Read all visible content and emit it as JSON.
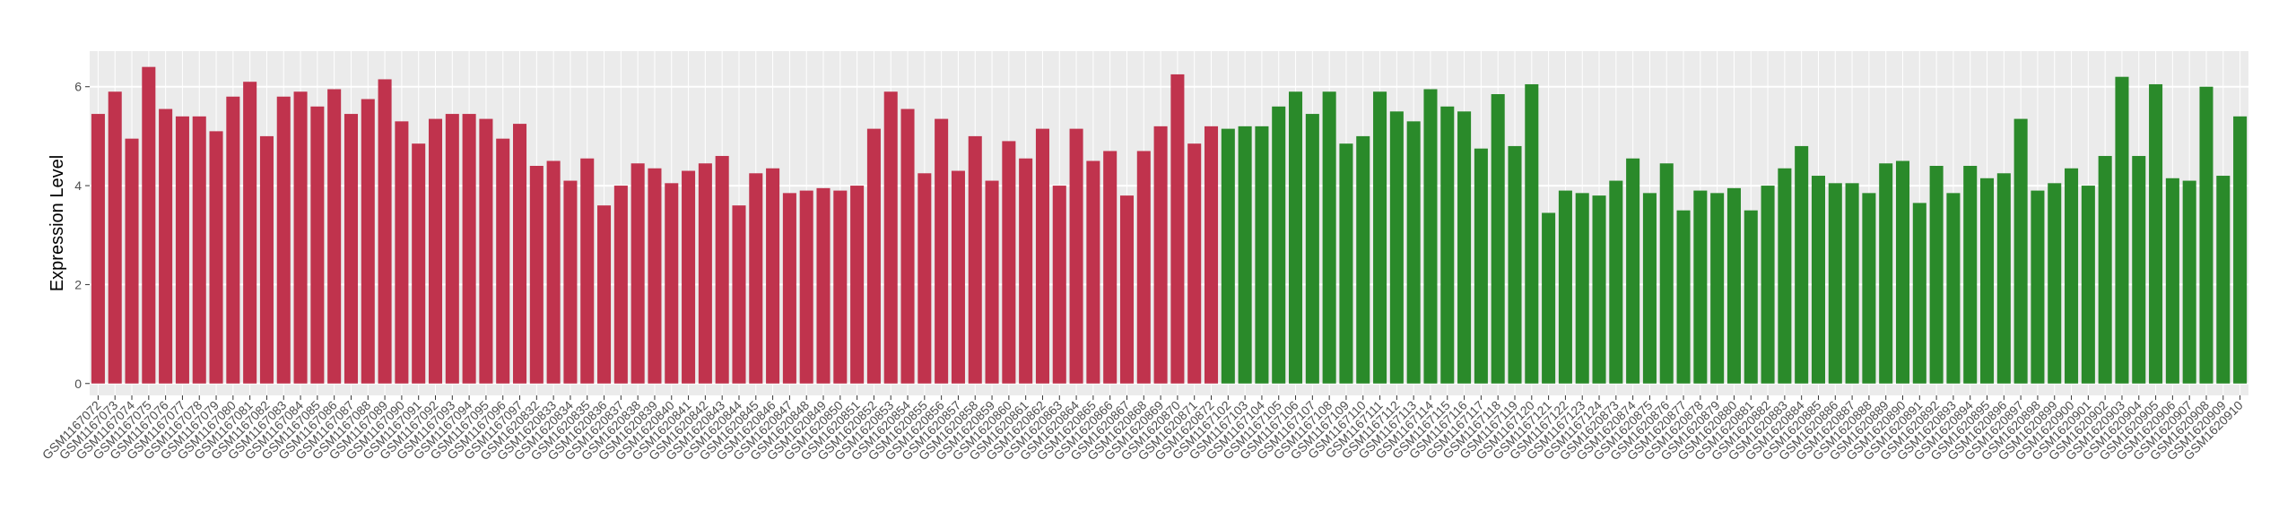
{
  "chart_data": {
    "type": "bar",
    "y_label": "Expression Level",
    "ylim": [
      -0.24,
      6.72
    ],
    "yticks": [
      0,
      2,
      4,
      6
    ],
    "grid": true,
    "groups": [
      {
        "color": "#c0334d",
        "categories": [
          "GSM1167072",
          "GSM1167073",
          "GSM1167074",
          "GSM1167075",
          "GSM1167076",
          "GSM1167077",
          "GSM1167078",
          "GSM1167079",
          "GSM1167080",
          "GSM1167081",
          "GSM1167082",
          "GSM1167083",
          "GSM1167084",
          "GSM1167085",
          "GSM1167086",
          "GSM1167087",
          "GSM1167088",
          "GSM1167089",
          "GSM1167090",
          "GSM1167091",
          "GSM1167092",
          "GSM1167093",
          "GSM1167094",
          "GSM1167095",
          "GSM1167096",
          "GSM1167097",
          "GSM1620832",
          "GSM1620833",
          "GSM1620834",
          "GSM1620835",
          "GSM1620836",
          "GSM1620837",
          "GSM1620838",
          "GSM1620839",
          "GSM1620840",
          "GSM1620841",
          "GSM1620842",
          "GSM1620843",
          "GSM1620844",
          "GSM1620845",
          "GSM1620846",
          "GSM1620847",
          "GSM1620848",
          "GSM1620849",
          "GSM1620850",
          "GSM1620851",
          "GSM1620852",
          "GSM1620853",
          "GSM1620854",
          "GSM1620855",
          "GSM1620856",
          "GSM1620857",
          "GSM1620858",
          "GSM1620859",
          "GSM1620860",
          "GSM1620861",
          "GSM1620862",
          "GSM1620863",
          "GSM1620864",
          "GSM1620865",
          "GSM1620866",
          "GSM1620867",
          "GSM1620868",
          "GSM1620869",
          "GSM1620870",
          "GSM1620871",
          "GSM1620872"
        ],
        "values": [
          5.45,
          5.9,
          4.95,
          6.4,
          5.55,
          5.4,
          5.4,
          5.1,
          5.8,
          6.1,
          5.0,
          5.8,
          5.9,
          5.6,
          5.95,
          5.45,
          5.75,
          6.15,
          5.3,
          4.85,
          5.35,
          5.45,
          5.45,
          5.35,
          4.95,
          5.25,
          4.4,
          4.5,
          4.1,
          4.55,
          3.6,
          4.0,
          4.45,
          4.35,
          4.05,
          4.3,
          4.45,
          4.6,
          3.6,
          4.25,
          4.35,
          3.85,
          3.9,
          3.95,
          3.9,
          4.0,
          5.15,
          5.9,
          5.55,
          4.25,
          5.35,
          4.3,
          5.0,
          4.1,
          4.9,
          4.55,
          5.15,
          4.0,
          5.15,
          4.5,
          4.7,
          3.8,
          4.7,
          5.2,
          6.25,
          4.85,
          5.2
        ]
      },
      {
        "color": "#2a8a2a",
        "categories": [
          "GSM1167102",
          "GSM1167103",
          "GSM1167104",
          "GSM1167105",
          "GSM1167106",
          "GSM1167107",
          "GSM1167108",
          "GSM1167109",
          "GSM1167110",
          "GSM1167111",
          "GSM1167112",
          "GSM1167113",
          "GSM1167114",
          "GSM1167115",
          "GSM1167116",
          "GSM1167117",
          "GSM1167118",
          "GSM1167119",
          "GSM1167120",
          "GSM1167121",
          "GSM1167122",
          "GSM1167123",
          "GSM1167124",
          "GSM1620873",
          "GSM1620874",
          "GSM1620875",
          "GSM1620876",
          "GSM1620877",
          "GSM1620878",
          "GSM1620879",
          "GSM1620880",
          "GSM1620881",
          "GSM1620882",
          "GSM1620883",
          "GSM1620884",
          "GSM1620885",
          "GSM1620886",
          "GSM1620887",
          "GSM1620888",
          "GSM1620889",
          "GSM1620890",
          "GSM1620891",
          "GSM1620892",
          "GSM1620893",
          "GSM1620894",
          "GSM1620895",
          "GSM1620896",
          "GSM1620897",
          "GSM1620898",
          "GSM1620899",
          "GSM1620900",
          "GSM1620901",
          "GSM1620902",
          "GSM1620903",
          "GSM1620904",
          "GSM1620905",
          "GSM1620906",
          "GSM1620907",
          "GSM1620908",
          "GSM1620909",
          "GSM1620910"
        ],
        "values": [
          5.15,
          5.2,
          5.2,
          5.6,
          5.9,
          5.45,
          5.9,
          4.85,
          5.0,
          5.9,
          5.5,
          5.3,
          5.95,
          5.6,
          5.5,
          4.75,
          5.85,
          4.8,
          6.05,
          3.45,
          3.9,
          3.85,
          3.8,
          4.1,
          4.55,
          3.85,
          4.45,
          3.5,
          3.9,
          3.85,
          3.95,
          3.5,
          4.0,
          4.35,
          4.8,
          4.2,
          4.05,
          4.05,
          3.85,
          4.45,
          4.5,
          3.65,
          4.4,
          3.85,
          4.4,
          4.15,
          4.25,
          5.35,
          3.9,
          4.05,
          4.35,
          4.0,
          4.6,
          6.2,
          4.6,
          6.05,
          4.15,
          4.1,
          6.0,
          4.2,
          5.4
        ]
      }
    ]
  }
}
